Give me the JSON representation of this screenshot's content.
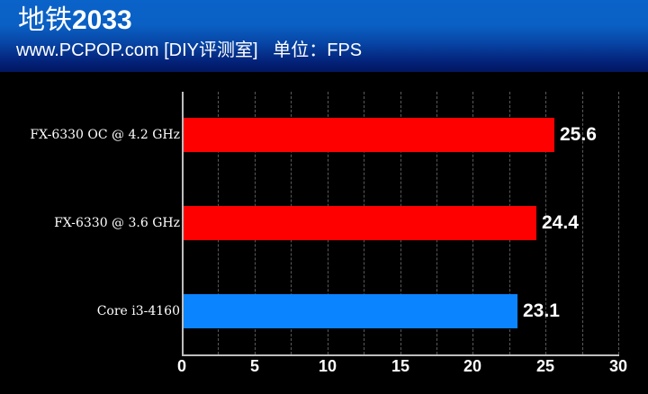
{
  "header": {
    "title_cn": "地铁",
    "title_num": "2033",
    "subtitle": "www.PCPOP.com [DIY评测室]   单位：FPS"
  },
  "chart_data": {
    "type": "bar",
    "orientation": "horizontal",
    "title": "地铁2033",
    "subtitle": "www.PCPOP.com [DIY评测室]  单位：FPS",
    "xlabel": "FPS",
    "ylabel": "",
    "categories": [
      "FX-6330 OC @ 4.2 GHz",
      "FX-6330 @ 3.6 GHz",
      "Core i3-4160"
    ],
    "values": [
      25.6,
      24.4,
      23.1
    ],
    "value_labels": [
      "25.6",
      "24.4",
      "23.1"
    ],
    "bar_colors": [
      "#ff0000",
      "#ff0000",
      "#0a84ff"
    ],
    "xlim": [
      0,
      30
    ],
    "xticks": [
      "0",
      "5",
      "10",
      "15",
      "20",
      "25",
      "30"
    ],
    "grid": true,
    "grid_step": 2.5,
    "legend": "none"
  }
}
